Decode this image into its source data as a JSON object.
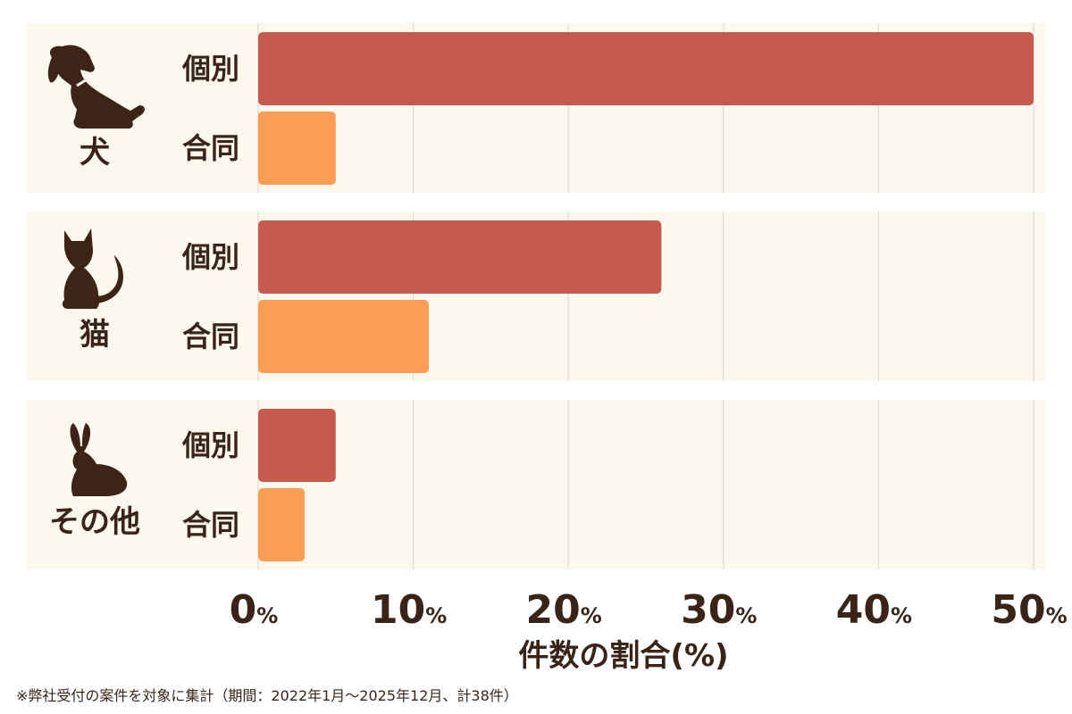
{
  "colors": {
    "background": "#ffffff",
    "panel": "#fdf8ee",
    "gridline": "#dcd6cb",
    "text": "#3a2418",
    "icon": "#3d2417",
    "bar_individual": "#c65a4f",
    "bar_joint": "#fb9d55"
  },
  "chart_data": {
    "type": "bar",
    "orientation": "horizontal",
    "xlabel": "件数の割合(%)",
    "xlim": [
      0,
      50
    ],
    "x_ticks": [
      {
        "num": "0",
        "unit": "%"
      },
      {
        "num": "10",
        "unit": "%"
      },
      {
        "num": "20",
        "unit": "%"
      },
      {
        "num": "30",
        "unit": "%"
      },
      {
        "num": "40",
        "unit": "%"
      },
      {
        "num": "50",
        "unit": "%"
      }
    ],
    "grid": true,
    "groups": [
      {
        "label": "犬",
        "icon": "dog-icon",
        "bars": [
          {
            "label": "個別",
            "kind": "individual",
            "value": 50
          },
          {
            "label": "合同",
            "kind": "joint",
            "value": 5
          }
        ]
      },
      {
        "label": "猫",
        "icon": "cat-icon",
        "bars": [
          {
            "label": "個別",
            "kind": "individual",
            "value": 26
          },
          {
            "label": "合同",
            "kind": "joint",
            "value": 11
          }
        ]
      },
      {
        "label": "その他",
        "icon": "rabbit-icon",
        "bars": [
          {
            "label": "個別",
            "kind": "individual",
            "value": 5
          },
          {
            "label": "合同",
            "kind": "joint",
            "value": 3
          }
        ]
      }
    ]
  },
  "footnote": "※弊社受付の案件を対象に集計（期間：2022年1月～2025年12月、計38件）"
}
